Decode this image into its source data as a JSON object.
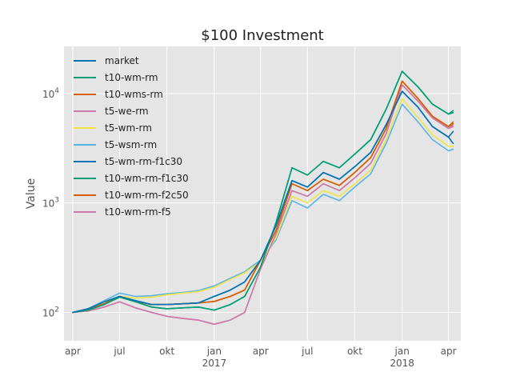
{
  "chart_data": {
    "type": "line",
    "title": "$100 Investment",
    "xlabel": "",
    "ylabel": "Value",
    "y_scale": "log",
    "ylim": [
      55,
      27000
    ],
    "xlim": [
      "2016-03-15",
      "2018-04-25"
    ],
    "grid": true,
    "legend_position": "upper-left",
    "x_ticks": [
      {
        "date": "2016-04-01",
        "label": "apr",
        "year": ""
      },
      {
        "date": "2016-07-01",
        "label": "jul",
        "year": ""
      },
      {
        "date": "2016-10-01",
        "label": "okt",
        "year": ""
      },
      {
        "date": "2017-01-01",
        "label": "jan",
        "year": "2017"
      },
      {
        "date": "2017-04-01",
        "label": "apr",
        "year": ""
      },
      {
        "date": "2017-07-01",
        "label": "jul",
        "year": ""
      },
      {
        "date": "2017-10-01",
        "label": "okt",
        "year": ""
      },
      {
        "date": "2018-01-01",
        "label": "jan",
        "year": "2018"
      },
      {
        "date": "2018-04-01",
        "label": "apr",
        "year": ""
      }
    ],
    "y_ticks": [
      {
        "value": 100,
        "base": "10",
        "exp": "2"
      },
      {
        "value": 1000,
        "base": "10",
        "exp": "3"
      },
      {
        "value": 10000,
        "base": "10",
        "exp": "4"
      }
    ],
    "x": [
      "2016-04-01",
      "2016-05-01",
      "2016-06-01",
      "2016-07-01",
      "2016-08-01",
      "2016-09-01",
      "2016-10-01",
      "2016-11-01",
      "2016-12-01",
      "2017-01-01",
      "2017-02-01",
      "2017-03-01",
      "2017-04-01",
      "2017-05-01",
      "2017-06-01",
      "2017-07-01",
      "2017-08-01",
      "2017-09-01",
      "2017-10-01",
      "2017-11-01",
      "2017-12-01",
      "2018-01-01",
      "2018-02-01",
      "2018-03-01",
      "2018-04-01",
      "2018-04-10"
    ],
    "series": [
      {
        "name": "market",
        "color": "#0072B2",
        "values": [
          100,
          108,
          125,
          140,
          128,
          118,
          118,
          120,
          122,
          140,
          160,
          190,
          300,
          620,
          1600,
          1400,
          1900,
          1650,
          2150,
          2900,
          5200,
          10500,
          7500,
          5000,
          4000,
          4500
        ]
      },
      {
        "name": "t10-wm-rm",
        "color": "#009E73",
        "values": [
          100,
          105,
          118,
          138,
          125,
          112,
          108,
          110,
          112,
          105,
          118,
          140,
          260,
          660,
          2100,
          1800,
          2400,
          2100,
          2800,
          3800,
          7200,
          16000,
          11500,
          8000,
          6500,
          7000
        ]
      },
      {
        "name": "t10-wms-rm",
        "color": "#D55E00",
        "values": [
          100,
          107,
          120,
          140,
          127,
          118,
          118,
          120,
          122,
          126,
          140,
          160,
          300,
          560,
          1500,
          1300,
          1650,
          1450,
          1900,
          2600,
          4800,
          13000,
          9000,
          6200,
          5000,
          5500
        ]
      },
      {
        "name": "t5-we-rm",
        "color": "#CC79A7",
        "values": [
          100,
          103,
          112,
          125,
          110,
          100,
          92,
          88,
          85,
          78,
          85,
          100,
          250,
          520,
          1300,
          1150,
          1500,
          1300,
          1700,
          2300,
          4300,
          12000,
          8500,
          6000,
          4800,
          5200
        ]
      },
      {
        "name": "t5-wm-rm",
        "color": "#F0E442",
        "values": [
          100,
          106,
          125,
          140,
          135,
          138,
          145,
          150,
          155,
          170,
          200,
          230,
          290,
          480,
          1150,
          1000,
          1300,
          1150,
          1500,
          2000,
          3800,
          9000,
          6000,
          4200,
          3300,
          3300
        ]
      },
      {
        "name": "t5-wsm-rm",
        "color": "#56B4E9",
        "values": [
          100,
          108,
          128,
          150,
          140,
          142,
          148,
          152,
          158,
          175,
          205,
          235,
          300,
          460,
          1050,
          900,
          1200,
          1050,
          1400,
          1850,
          3500,
          8000,
          5500,
          3800,
          3000,
          3100
        ]
      },
      {
        "name": "t5-wm-rm-f1c30",
        "color": "#0072B2",
        "values": [
          100,
          108,
          125,
          140,
          128,
          118,
          118,
          120,
          122,
          140,
          160,
          190,
          300,
          620,
          1600,
          1400,
          1900,
          1650,
          2150,
          2900,
          5200,
          10500,
          7500,
          5000,
          4000,
          3500
        ]
      },
      {
        "name": "t10-wm-rm-f1c30",
        "color": "#009E73",
        "values": [
          100,
          105,
          118,
          138,
          125,
          112,
          108,
          110,
          112,
          105,
          118,
          140,
          260,
          660,
          2100,
          1800,
          2400,
          2100,
          2800,
          3800,
          7200,
          16000,
          11500,
          8000,
          6500,
          6700
        ]
      },
      {
        "name": "t10-wm-rm-f2c50",
        "color": "#D55E00",
        "values": [
          100,
          107,
          120,
          140,
          127,
          118,
          118,
          120,
          122,
          126,
          140,
          160,
          300,
          560,
          1500,
          1300,
          1650,
          1450,
          1900,
          2600,
          4800,
          13000,
          9000,
          6200,
          5000,
          5300
        ]
      },
      {
        "name": "t10-wm-rm-f5",
        "color": "#CC79A7",
        "values": [
          100,
          103,
          112,
          125,
          110,
          100,
          92,
          88,
          85,
          78,
          85,
          100,
          250,
          520,
          1300,
          1150,
          1500,
          1300,
          1700,
          2300,
          4300,
          12000,
          8500,
          6000,
          4800,
          5000
        ]
      }
    ]
  }
}
